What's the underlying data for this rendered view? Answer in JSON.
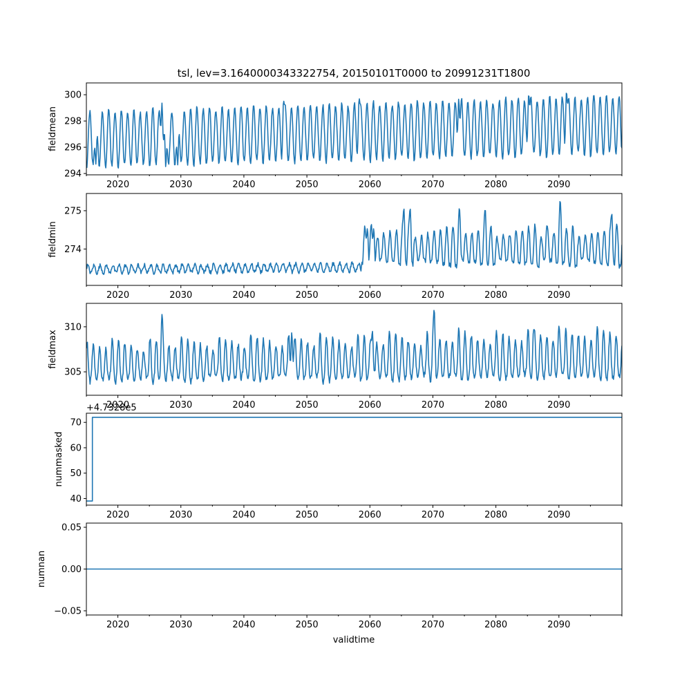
{
  "title": "tsl, lev=3.1640000343322754, 20150101T0000 to 20991231T1800",
  "xlabel": "validtime",
  "accent": "#1f77b4",
  "chart_data": [
    {
      "type": "line",
      "name": "fieldmean",
      "ylabel": "fieldmean",
      "xlim": [
        2015,
        2100
      ],
      "ylim": [
        293.9,
        300.9
      ],
      "xticks": [
        2020,
        2030,
        2040,
        2050,
        2060,
        2070,
        2080,
        2090
      ],
      "yticks": [
        294,
        296,
        298,
        300
      ],
      "series_description": "seasonal cycle, roughly 294.5 to 299 early, rising to about 295.5 to 300 by 2090s",
      "seasonal": {
        "base_start": 296.6,
        "base_end": 297.7,
        "amp_start": 2.1,
        "amp_end": 2.2,
        "noise": 0.35
      },
      "peaks": [
        [
          2027.0,
          299.9
        ],
        [
          2091.2,
          300.7
        ],
        [
          2074.1,
          300.2
        ],
        [
          2085.2,
          300.5
        ],
        [
          2046.3,
          299.8
        ],
        [
          2058.3,
          300.0
        ]
      ],
      "troughs": [
        [
          2027.6,
          294.0
        ],
        [
          2016.5,
          294.3
        ],
        [
          2029.5,
          294.2
        ]
      ]
    },
    {
      "type": "line",
      "name": "fieldmin",
      "ylabel": "fieldmin",
      "xlim": [
        2015,
        2100
      ],
      "ylim": [
        273.05,
        275.45
      ],
      "xticks": [
        2020,
        2030,
        2040,
        2050,
        2060,
        2070,
        2080,
        2090
      ],
      "yticks": [
        274,
        275
      ],
      "series_description": "small oscillation near 273.4 until ~2058, then a jump with peaks reaching 274.5 to 275.3",
      "seasonal": {
        "base_start": 273.5,
        "base_end": 273.6,
        "amp_start": 0.1,
        "amp_end": 0.12,
        "noise": 0.05
      },
      "peaks": [
        [
          2059.6,
          274.65
        ],
        [
          2060.6,
          274.65
        ],
        [
          2065.4,
          275.15
        ],
        [
          2066.4,
          275.15
        ],
        [
          2074.2,
          275.15
        ],
        [
          2090.2,
          275.35
        ],
        [
          2078.3,
          275.1
        ],
        [
          2088.1,
          274.65
        ],
        [
          2098.4,
          275.0
        ]
      ],
      "regime_change_year": 2058.6
    },
    {
      "type": "line",
      "name": "fieldmax",
      "ylabel": "fieldmax",
      "xlim": [
        2015,
        2100
      ],
      "ylim": [
        302.4,
        312.6
      ],
      "xticks": [
        2020,
        2030,
        2040,
        2050,
        2060,
        2070,
        2080,
        2090
      ],
      "yticks": [
        305,
        310
      ],
      "series_description": "seasonal spikes between about 303 and 309, occasional peaks to 311.8 (2027) and 312.3 (2070)",
      "seasonal": {
        "base_start": 305.2,
        "base_end": 305.8,
        "amp_start": 2.0,
        "amp_end": 2.4,
        "noise": 0.6
      },
      "peaks": [
        [
          2027.0,
          311.8
        ],
        [
          2070.2,
          312.3
        ],
        [
          2090.0,
          310.3
        ],
        [
          2086.0,
          309.8
        ],
        [
          2060.4,
          310.0
        ],
        [
          2047.6,
          310.0
        ]
      ]
    },
    {
      "type": "line",
      "name": "nummasked",
      "ylabel": "nummasked",
      "offset_label": "+4.7328e5",
      "xlim": [
        2015,
        2100
      ],
      "ylim": [
        37.4,
        73.6
      ],
      "xticks": [
        2020,
        2030,
        2040,
        2050,
        2060,
        2070,
        2080,
        2090
      ],
      "yticks": [
        40,
        50,
        60,
        70
      ],
      "steps": [
        [
          2015.0,
          39
        ],
        [
          2015.95,
          39
        ],
        [
          2015.95,
          72
        ],
        [
          2100,
          72
        ]
      ]
    },
    {
      "type": "line",
      "name": "numnan",
      "ylabel": "numnan",
      "xlim": [
        2015,
        2100
      ],
      "ylim": [
        -0.055,
        0.055
      ],
      "xticks": [
        2020,
        2030,
        2040,
        2050,
        2060,
        2070,
        2080,
        2090
      ],
      "yticks": [
        -0.05,
        0.0,
        0.05
      ],
      "yticklabels": [
        "−0.05",
        "0.00",
        "0.05"
      ],
      "steps": [
        [
          2015.0,
          0
        ],
        [
          2100,
          0
        ]
      ]
    }
  ]
}
